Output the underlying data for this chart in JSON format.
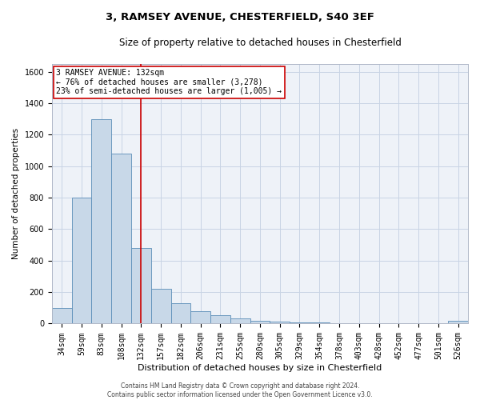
{
  "title1": "3, RAMSEY AVENUE, CHESTERFIELD, S40 3EF",
  "title2": "Size of property relative to detached houses in Chesterfield",
  "xlabel": "Distribution of detached houses by size in Chesterfield",
  "ylabel": "Number of detached properties",
  "categories": [
    "34sqm",
    "59sqm",
    "83sqm",
    "108sqm",
    "132sqm",
    "157sqm",
    "182sqm",
    "206sqm",
    "231sqm",
    "255sqm",
    "280sqm",
    "305sqm",
    "329sqm",
    "354sqm",
    "378sqm",
    "403sqm",
    "428sqm",
    "452sqm",
    "477sqm",
    "501sqm",
    "526sqm"
  ],
  "values": [
    100,
    800,
    1300,
    1080,
    480,
    220,
    130,
    80,
    55,
    35,
    20,
    15,
    8,
    5,
    3,
    2,
    1,
    1,
    0,
    0,
    18
  ],
  "bar_color": "#c8d8e8",
  "bar_edge_color": "#5b8db8",
  "vline_x": 4,
  "vline_color": "#cc0000",
  "annotation_text": "3 RAMSEY AVENUE: 132sqm\n← 76% of detached houses are smaller (3,278)\n23% of semi-detached houses are larger (1,005) →",
  "annotation_box_color": "#cc0000",
  "ylim": [
    0,
    1650
  ],
  "yticks": [
    0,
    200,
    400,
    600,
    800,
    1000,
    1200,
    1400,
    1600
  ],
  "grid_color": "#c8d4e4",
  "background_color": "#eef2f8",
  "footer_text": "Contains HM Land Registry data © Crown copyright and database right 2024.\nContains public sector information licensed under the Open Government Licence v3.0.",
  "title1_fontsize": 9.5,
  "title2_fontsize": 8.5,
  "xlabel_fontsize": 8,
  "ylabel_fontsize": 7.5,
  "tick_fontsize": 7,
  "annot_fontsize": 7,
  "footer_fontsize": 5.5
}
